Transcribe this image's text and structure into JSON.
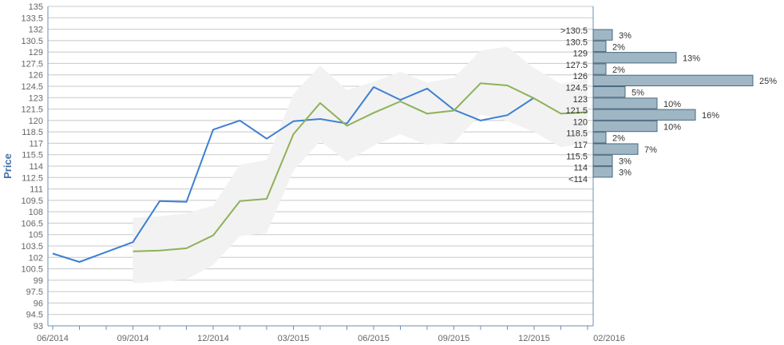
{
  "chart_data": {
    "type": "line",
    "ylabel": "Price",
    "ylim": [
      93,
      135
    ],
    "y_ticks": [
      "135",
      "133.5",
      "132",
      "130.5",
      "129",
      "127.5",
      "126",
      "124.5",
      "123",
      "121.5",
      "120",
      "118.5",
      "117",
      "115.5",
      "114",
      "112.5",
      "111",
      "109.5",
      "108",
      "106.5",
      "105",
      "103.5",
      "102",
      "100.5",
      "99",
      "97.5",
      "96",
      "94.5",
      "93"
    ],
    "x_ticks": [
      "06/2014",
      "09/2014",
      "12/2014",
      "03/2015",
      "06/2015",
      "09/2015",
      "12/2015",
      "02/2016"
    ],
    "grid": true,
    "series": [
      {
        "color": "#3d7fd1",
        "x": [
          "2014-06",
          "2014-07",
          "2014-08",
          "2014-09",
          "2014-10",
          "2014-11",
          "2014-12",
          "2015-01",
          "2015-02",
          "2015-03",
          "2015-04",
          "2015-05",
          "2015-06",
          "2015-07",
          "2015-08",
          "2015-09",
          "2015-10",
          "2015-11",
          "2015-12"
        ],
        "values": [
          102.5,
          101.4,
          102.7,
          104.0,
          109.4,
          109.3,
          118.8,
          120.0,
          117.6,
          119.9,
          120.2,
          119.6,
          124.4,
          122.7,
          124.2,
          121.4,
          120.0,
          120.7,
          123.0
        ]
      },
      {
        "color": "#8fb157",
        "x": [
          "2014-09",
          "2014-10",
          "2014-11",
          "2014-12",
          "2015-01",
          "2015-02",
          "2015-03",
          "2015-04",
          "2015-05",
          "2015-06",
          "2015-07",
          "2015-08",
          "2015-09",
          "2015-10",
          "2015-11",
          "2015-12",
          "2016-01",
          "2016-02"
        ],
        "values": [
          102.8,
          102.9,
          103.2,
          104.9,
          109.4,
          109.7,
          118.2,
          122.3,
          119.3,
          121.0,
          122.5,
          120.9,
          121.3,
          124.9,
          124.6,
          122.9,
          120.9,
          121.1
        ]
      }
    ],
    "band": {
      "x": [
        "2014-09",
        "2014-10",
        "2014-11",
        "2014-12",
        "2015-01",
        "2015-02",
        "2015-03",
        "2015-04",
        "2015-05",
        "2015-06",
        "2015-07",
        "2015-08",
        "2015-09",
        "2015-10",
        "2015-11",
        "2015-12",
        "2016-01",
        "2016-02"
      ],
      "upper": [
        107.2,
        107.4,
        107.8,
        108.8,
        114.2,
        114.8,
        123.5,
        127.2,
        124.0,
        125.1,
        126.4,
        125.0,
        125.6,
        129.2,
        129.7,
        126.9,
        124.8,
        125.5
      ],
      "lower": [
        98.6,
        98.8,
        99.1,
        101.0,
        104.8,
        105.2,
        113.4,
        117.3,
        114.6,
        116.7,
        118.2,
        116.8,
        117.1,
        120.8,
        119.9,
        118.5,
        116.5,
        117.0
      ]
    },
    "distribution": [
      {
        "label": ">130.5",
        "pct": 3,
        "pct_label": "3%"
      },
      {
        "label": "130.5",
        "pct": 2,
        "pct_label": "2%"
      },
      {
        "label": "129",
        "pct": 13,
        "pct_label": "13%"
      },
      {
        "label": "127.5",
        "pct": 2,
        "pct_label": "2%"
      },
      {
        "label": "126",
        "pct": 25,
        "pct_label": "25%"
      },
      {
        "label": "124.5",
        "pct": 5,
        "pct_label": "5%"
      },
      {
        "label": "123",
        "pct": 10,
        "pct_label": "10%"
      },
      {
        "label": "121.5",
        "pct": 16,
        "pct_label": "16%"
      },
      {
        "label": "120",
        "pct": 10,
        "pct_label": "10%"
      },
      {
        "label": "118.5",
        "pct": 2,
        "pct_label": "2%"
      },
      {
        "label": "117",
        "pct": 7,
        "pct_label": "7%"
      },
      {
        "label": "115.5",
        "pct": 3,
        "pct_label": "3%"
      },
      {
        "label": "114",
        "pct": 3,
        "pct_label": "3%"
      },
      {
        "label": "<114",
        "pct": 0,
        "pct_label": ""
      }
    ],
    "colors": {
      "grid": "#c8c8c8",
      "axis": "#6b8fb5",
      "band": "#f2f2f2",
      "bar_fill": "#9fb6c4",
      "bar_stroke": "#4a6a80"
    }
  }
}
